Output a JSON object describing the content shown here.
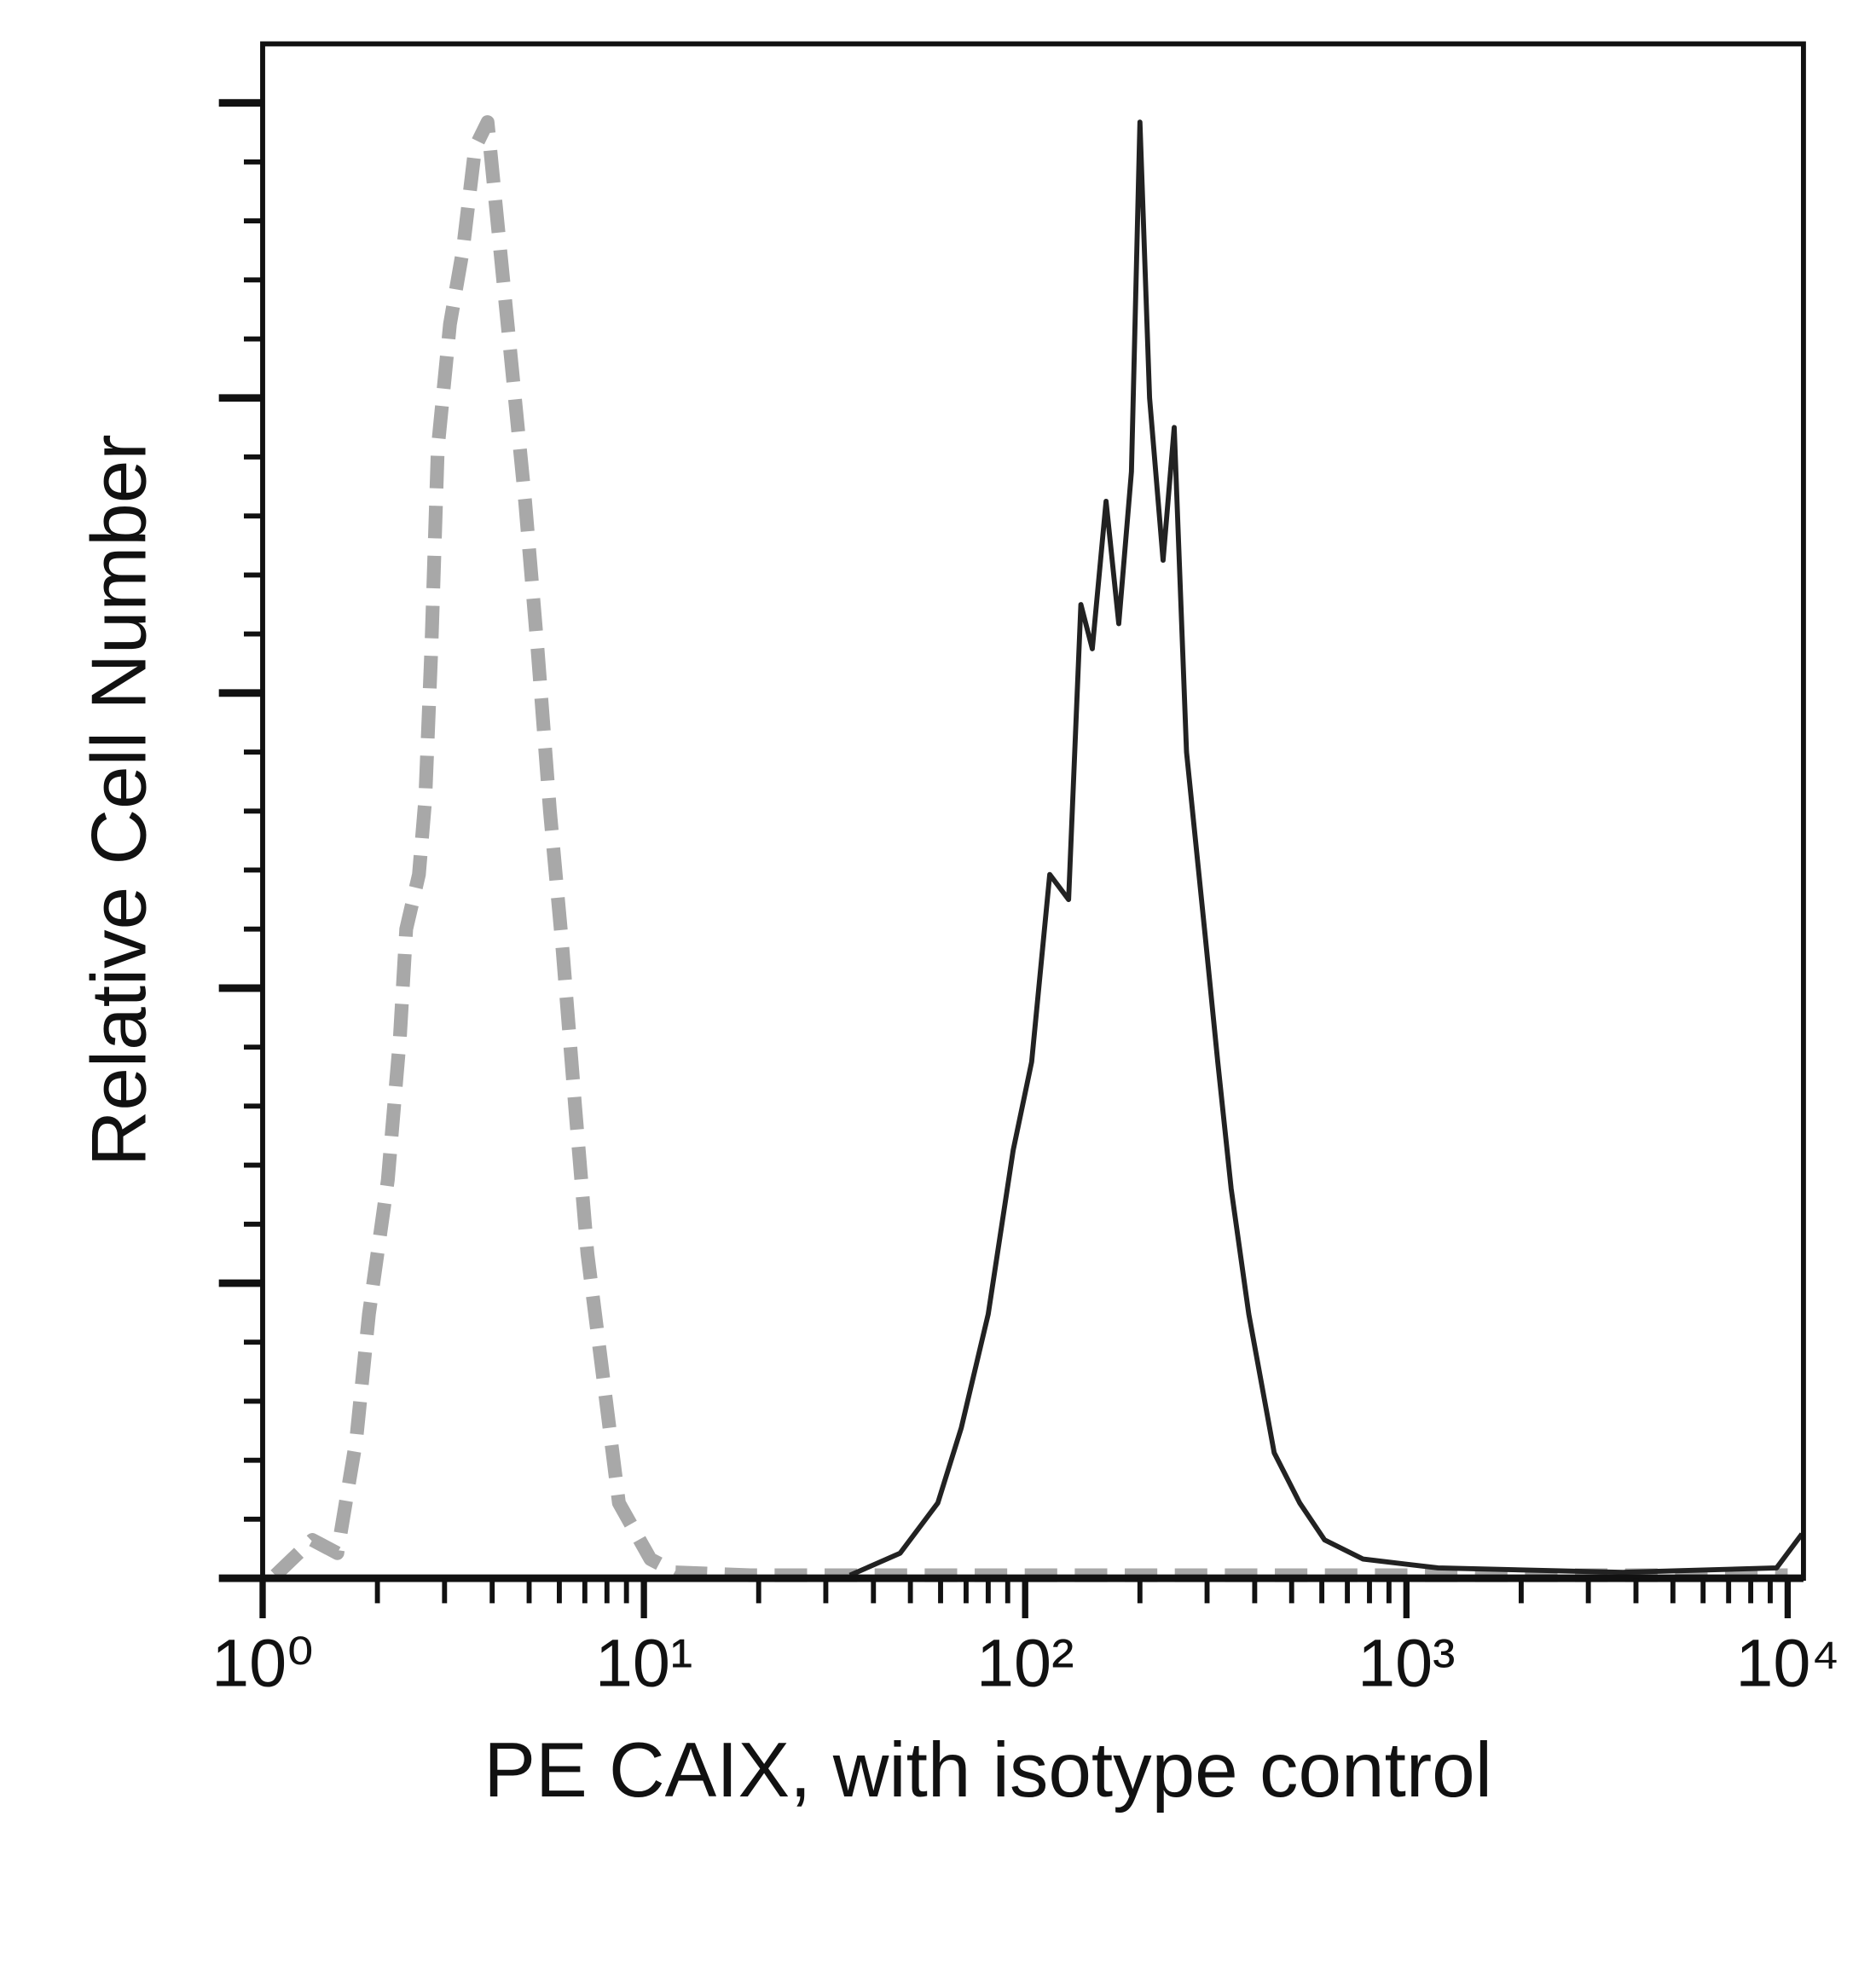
{
  "chart_data": {
    "type": "line",
    "x_label": "PE CAIX, with isotype control",
    "y_label": "Relative Cell Number",
    "xscale": "log",
    "xlim": [
      1,
      11000
    ],
    "xticks": [
      {
        "value": 1,
        "label": "10⁰"
      },
      {
        "value": 10,
        "label": "10¹"
      },
      {
        "value": 100,
        "label": "10²"
      },
      {
        "value": 1000,
        "label": "10³"
      },
      {
        "value": 10000,
        "label": "10⁴"
      }
    ],
    "xminorticks": [
      2,
      3,
      4,
      5,
      6,
      7,
      8,
      9,
      20,
      30,
      40,
      50,
      60,
      70,
      80,
      90,
      200,
      300,
      400,
      500,
      600,
      700,
      800,
      900,
      2000,
      3000,
      4000,
      5000,
      6000,
      7000,
      8000,
      9000
    ],
    "ylim": [
      0,
      104
    ],
    "yticks": [
      0,
      4,
      8,
      12,
      16,
      20,
      24,
      28,
      32,
      36,
      40,
      44,
      48,
      52,
      56,
      60,
      64,
      68,
      72,
      76,
      80,
      84,
      88,
      92,
      96,
      100
    ],
    "series": [
      {
        "name": "isotype control",
        "color": "#a8a8a8",
        "dashed": true,
        "x": [
          1.08,
          1.35,
          1.57,
          1.76,
          1.9,
          2.13,
          2.29,
          2.38,
          2.57,
          2.67,
          2.77,
          2.88,
          3.1,
          3.35,
          3.61,
          3.89,
          4.2,
          4.52,
          4.88,
          5.26,
          5.67,
          6.12,
          6.6,
          7.11,
          7.67,
          8.6,
          10.4,
          12.1,
          19,
          823,
          10000
        ],
        "values": [
          0.2,
          2.6,
          1.7,
          9.4,
          17.9,
          27,
          36.6,
          44,
          47.7,
          52.8,
          63,
          76.6,
          85,
          90,
          97,
          98.7,
          90,
          81.7,
          73,
          63,
          52,
          42.6,
          32,
          22,
          15.3,
          5.1,
          1.3,
          0.4,
          0.2,
          0.2,
          0.2
        ]
      },
      {
        "name": "PE CAIX",
        "color": "#222222",
        "dashed": false,
        "x": [
          34.7,
          47,
          59,
          68,
          80,
          93,
          104,
          116,
          130,
          140,
          150,
          163,
          176,
          190,
          200,
          212,
          230,
          246,
          265,
          297,
          320,
          347,
          386,
          450,
          525,
          610,
          770,
          1210,
          3700,
          9350,
          10900
        ],
        "values": [
          0.2,
          1.7,
          5.1,
          10.2,
          17.9,
          29,
          35,
          47.7,
          46,
          66,
          63,
          73,
          64.7,
          75,
          98.7,
          80,
          69,
          78,
          56,
          43.4,
          35,
          26.4,
          17.9,
          8.5,
          5.1,
          2.6,
          1.3,
          0.7,
          0.4,
          0.7,
          3
        ]
      }
    ]
  }
}
